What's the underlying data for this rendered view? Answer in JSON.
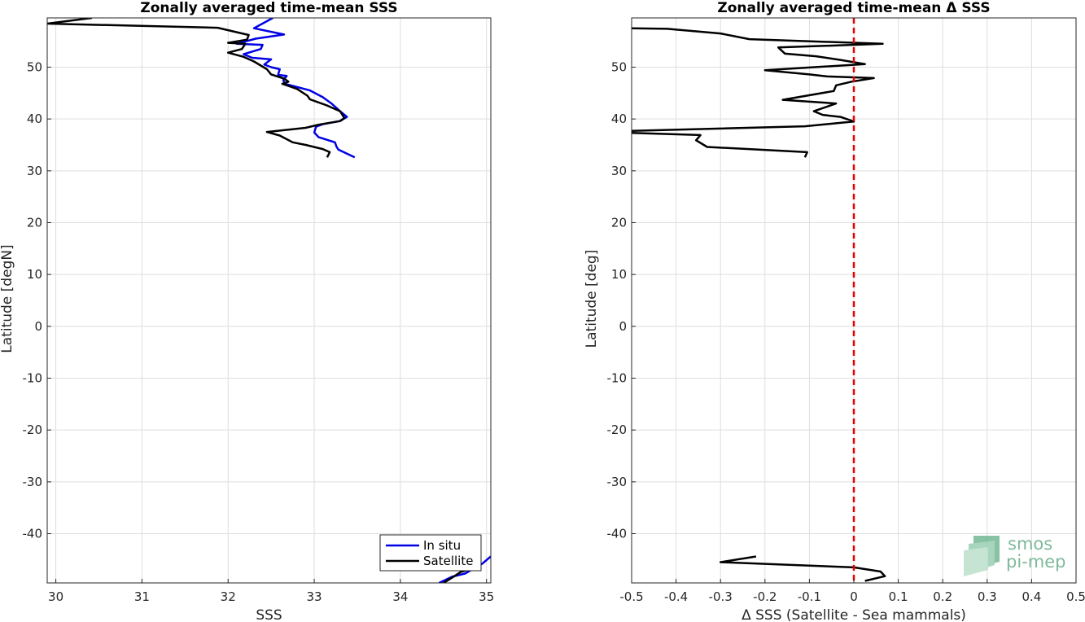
{
  "chart_data": [
    {
      "type": "line",
      "title": "Zonally averaged time-mean SSS",
      "xlabel": "SSS",
      "ylabel": "Latitude [degN]",
      "xlim": [
        29.9,
        35.05
      ],
      "ylim": [
        -49.5,
        59.5
      ],
      "xticks": [
        "30",
        "31",
        "32",
        "33",
        "34",
        "35"
      ],
      "yticks": [
        "-40",
        "-30",
        "-20",
        "-10",
        "0",
        "10",
        "20",
        "30",
        "40",
        "50"
      ],
      "grid": true,
      "legend": {
        "position": "bottom-right",
        "entries": [
          "In situ",
          "Satellite"
        ]
      },
      "colors": {
        "In situ": "#0000e6",
        "Satellite": "#000000"
      },
      "series": [
        {
          "name": "In situ",
          "color": "#0000e6",
          "segments": [
            [
              [
                32.52,
                59.5
              ],
              [
                32.3,
                57.5
              ],
              [
                32.65,
                56.3
              ],
              [
                32.32,
                55.5
              ],
              [
                32.1,
                54.5
              ],
              [
                32.4,
                54.3
              ],
              [
                32.38,
                53.5
              ],
              [
                32.18,
                52.5
              ],
              [
                32.28,
                51.8
              ],
              [
                32.5,
                51.5
              ],
              [
                32.42,
                50.5
              ],
              [
                32.5,
                50.0
              ],
              [
                32.6,
                49.6
              ],
              [
                32.58,
                48.5
              ],
              [
                32.68,
                48.3
              ],
              [
                32.64,
                47.5
              ],
              [
                32.66,
                46.8
              ],
              [
                32.95,
                45.5
              ],
              [
                33.1,
                44.2
              ],
              [
                33.2,
                43.0
              ],
              [
                33.3,
                41.5
              ],
              [
                33.38,
                40.4
              ],
              [
                33.3,
                39.6
              ],
              [
                33.1,
                39.0
              ],
              [
                33.02,
                38.5
              ],
              [
                33.0,
                37.4
              ],
              [
                33.05,
                36.5
              ],
              [
                33.24,
                35.5
              ],
              [
                33.26,
                34.6
              ],
              [
                33.28,
                34.1
              ],
              [
                33.47,
                32.6
              ]
            ],
            [
              [
                34.45,
                -49.5
              ],
              [
                34.6,
                -48.3
              ],
              [
                34.75,
                -47.7
              ],
              [
                34.95,
                -45.8
              ],
              [
                35.05,
                -44.4
              ]
            ]
          ]
        },
        {
          "name": "Satellite",
          "color": "#000000",
          "segments": [
            [
              [
                30.42,
                59.5
              ],
              [
                29.9,
                58.4
              ],
              [
                31.88,
                57.6
              ],
              [
                32.24,
                56.2
              ],
              [
                32.22,
                55.3
              ],
              [
                32.0,
                54.7
              ],
              [
                32.2,
                54.5
              ],
              [
                32.16,
                53.5
              ],
              [
                32.0,
                52.8
              ],
              [
                32.18,
                52.0
              ],
              [
                32.3,
                51.1
              ],
              [
                32.45,
                49.6
              ],
              [
                32.5,
                48.6
              ],
              [
                32.65,
                47.8
              ],
              [
                32.7,
                47.2
              ],
              [
                32.63,
                46.8
              ],
              [
                32.8,
                45.8
              ],
              [
                32.92,
                44.5
              ],
              [
                32.95,
                43.8
              ],
              [
                33.15,
                42.6
              ],
              [
                33.3,
                41.5
              ],
              [
                33.35,
                40.2
              ],
              [
                33.3,
                39.6
              ],
              [
                33.05,
                38.9
              ],
              [
                32.9,
                38.3
              ],
              [
                32.45,
                37.5
              ],
              [
                32.6,
                36.8
              ],
              [
                32.75,
                35.5
              ],
              [
                32.9,
                35.0
              ],
              [
                33.1,
                34.2
              ],
              [
                33.18,
                33.6
              ],
              [
                33.15,
                32.6
              ]
            ],
            [
              [
                34.5,
                -49.5
              ],
              [
                34.6,
                -48.5
              ],
              [
                34.7,
                -47.4
              ],
              [
                34.82,
                -46.8
              ]
            ]
          ]
        }
      ]
    },
    {
      "type": "line",
      "title": "Zonally averaged time-mean Δ SSS",
      "xlabel": "Δ SSS (Satellite - Sea mammals)",
      "ylabel": "Latitude [deg]",
      "xlim": [
        -0.5,
        0.5
      ],
      "ylim": [
        -49.5,
        59.5
      ],
      "xticks": [
        "-0.5",
        "-0.4",
        "-0.3",
        "-0.2",
        "-0.1",
        "0",
        "0.1",
        "0.2",
        "0.3",
        "0.4",
        "0.5"
      ],
      "yticks": [
        "-40",
        "-30",
        "-20",
        "-10",
        "0",
        "10",
        "20",
        "30",
        "40",
        "50"
      ],
      "grid": true,
      "reference_line": {
        "x": 0,
        "color": "#e60000",
        "style": "dashed"
      },
      "series": [
        {
          "color": "#000000",
          "segments": [
            [
              [
                -0.5,
                57.5
              ],
              [
                -0.42,
                57.4
              ],
              [
                -0.3,
                56.5
              ],
              [
                -0.235,
                55.4
              ],
              [
                0.065,
                54.5
              ],
              [
                -0.17,
                53.8
              ],
              [
                -0.155,
                52.6
              ],
              [
                -0.085,
                52.1
              ],
              [
                -0.03,
                51.4
              ],
              [
                0.025,
                50.6
              ],
              [
                -0.2,
                49.4
              ],
              [
                -0.1,
                48.6
              ],
              [
                -0.06,
                48.2
              ],
              [
                0.045,
                47.9
              ],
              [
                -0.005,
                47.2
              ],
              [
                -0.04,
                46.5
              ],
              [
                -0.045,
                45.4
              ],
              [
                -0.16,
                43.7
              ],
              [
                -0.04,
                43.0
              ],
              [
                -0.09,
                41.5
              ],
              [
                -0.07,
                40.8
              ],
              [
                -0.03,
                40.4
              ],
              [
                0.0,
                39.5
              ],
              [
                -0.11,
                38.6
              ],
              [
                -0.5,
                37.7
              ]
            ],
            [
              [
                -0.5,
                37.3
              ],
              [
                -0.345,
                36.9
              ],
              [
                -0.355,
                35.9
              ],
              [
                -0.33,
                34.6
              ],
              [
                -0.105,
                33.6
              ],
              [
                -0.11,
                32.6
              ]
            ],
            [
              [
                -0.22,
                -44.4
              ],
              [
                -0.3,
                -45.5
              ],
              [
                0.0,
                -46.5
              ],
              [
                0.06,
                -47.3
              ],
              [
                0.07,
                -48.2
              ],
              [
                0.025,
                -49.1
              ]
            ]
          ]
        }
      ]
    }
  ],
  "logo": {
    "line1": "smos",
    "line2": "pi-mep"
  }
}
